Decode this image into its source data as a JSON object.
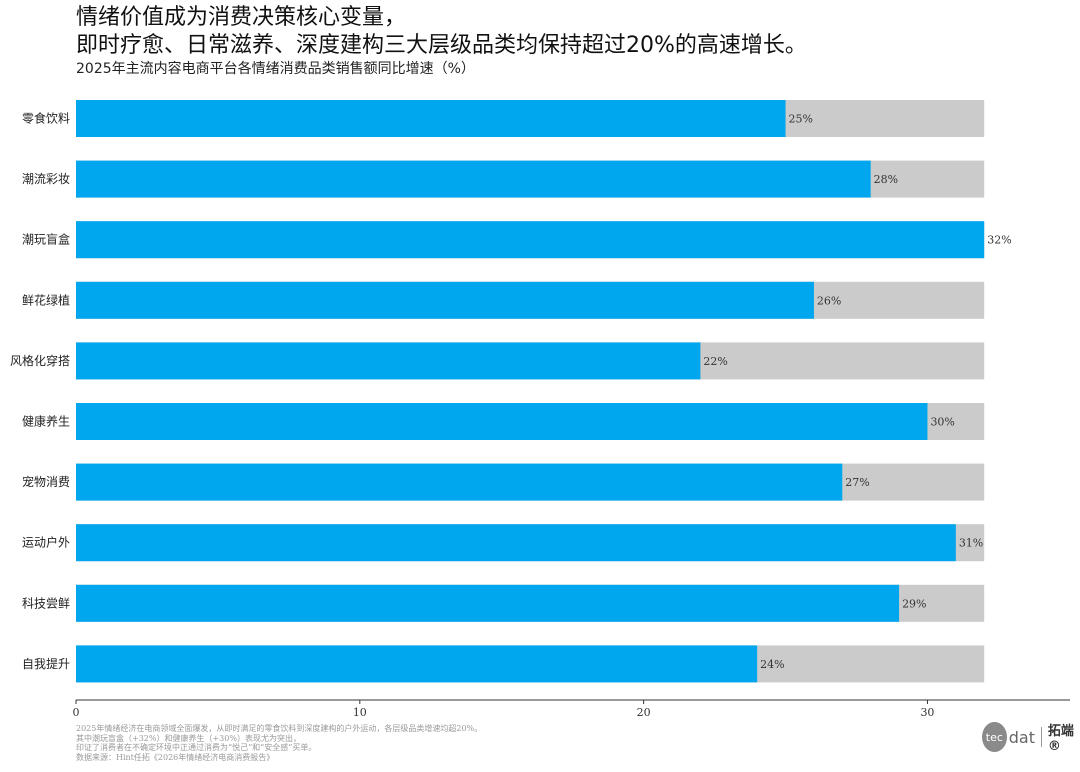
{
  "header": {
    "title_line1": "情绪价值成为消费决策核心变量，",
    "title_line2": "即时疗愈、日常滋养、深度建构三大层级品类均保持超过20%的高速增长。",
    "subtitle": "2025年主流内容电商平台各情绪消费品类销售额同比增速（%）"
  },
  "chart_data": {
    "type": "bar",
    "orientation": "horizontal",
    "title": "2025年主流内容电商平台各情绪消费品类销售额同比增速（%）",
    "categories": [
      "零食饮料",
      "潮流彩妆",
      "潮玩盲盒",
      "鲜花绿植",
      "风格化穿搭",
      "健康养生",
      "宠物消费",
      "运动户外",
      "科技尝鲜",
      "自我提升"
    ],
    "values": [
      25,
      28,
      32,
      26,
      22,
      30,
      27,
      31,
      29,
      24
    ],
    "value_labels": [
      "25%",
      "28%",
      "32%",
      "26%",
      "22%",
      "30%",
      "27%",
      "31%",
      "29%",
      "24%"
    ],
    "background_max": 32,
    "xlim": [
      0,
      34.6
    ],
    "xticks": [
      0,
      10,
      20,
      30
    ],
    "xlabel": "",
    "ylabel": "",
    "grid": false,
    "colors": {
      "bar": "#00a6ee",
      "background": "#cbcbcb",
      "axis": "#333333"
    }
  },
  "footer": {
    "notes": [
      "2025年情绪经济在电商领域全面爆发，从即时满足的零食饮料到深度建构的户外运动，各层级品类增速均超20%。",
      "其中潮玩盲盒（+32%）和健康养生（+30%）表现尤为突出，",
      "印证了消费者在不确定环境中正通过消费为“悦己”和“安全感”买单。",
      "数据来源：Hint任拓《2026年情绪经济电商消费报告》"
    ],
    "logo_circle": "tec",
    "logo_text": "dat",
    "logo_cn": "拓端®"
  }
}
